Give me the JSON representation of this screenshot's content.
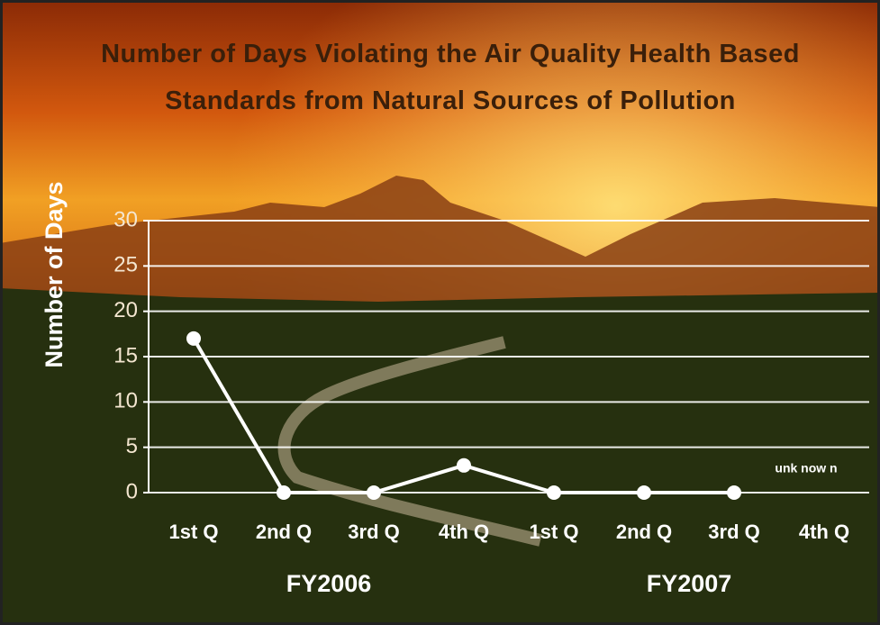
{
  "chart_data": {
    "type": "line",
    "title": "Number of Days Violating the Air Quality Health Based Standards from Natural Sources of Pollution",
    "y_label": "Number of Days",
    "categories": [
      "1st Q",
      "2nd Q",
      "3rd Q",
      "4th Q",
      "1st Q",
      "2nd Q",
      "3rd Q",
      "4th Q"
    ],
    "group_labels": [
      "FY2006",
      "FY2007"
    ],
    "values": [
      17,
      0,
      0,
      3,
      0,
      0,
      0,
      null
    ],
    "color": "#ffffff",
    "annotations": [
      "unk now n"
    ],
    "ylim": [
      0,
      30
    ],
    "yticks": [
      0,
      5,
      10,
      15,
      20,
      25,
      30
    ],
    "grid": true
  }
}
